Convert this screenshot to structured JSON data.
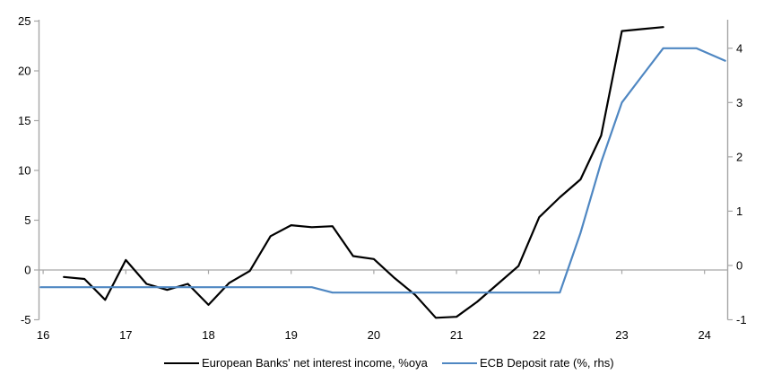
{
  "page": {
    "background": "#ffffff"
  },
  "chart_data": {
    "type": "line",
    "title": "",
    "x_axis": {
      "label": "",
      "ticks": [
        16,
        17,
        18,
        19,
        20,
        21,
        22,
        23,
        24
      ],
      "range": [
        15.95,
        24.28
      ]
    },
    "left_axis": {
      "label": "",
      "ticks": [
        -5,
        0,
        5,
        10,
        15,
        20,
        25
      ],
      "range": [
        -5,
        25
      ]
    },
    "right_axis": {
      "label": "",
      "ticks": [
        -1,
        0,
        1,
        2,
        3,
        4
      ],
      "range": [
        -1,
        4.5
      ]
    },
    "grid": {
      "zero_line": true,
      "full_grid": false
    },
    "legend_position": "bottom",
    "colors": {
      "axis": "#a6a6a6",
      "text": "#000000"
    },
    "series": [
      {
        "name": "European Banks' net interest income, %oya",
        "axis": "left",
        "color": "#000000",
        "points": [
          [
            16.25,
            -0.7
          ],
          [
            16.5,
            -0.9
          ],
          [
            16.75,
            -3.0
          ],
          [
            17.0,
            1.0
          ],
          [
            17.25,
            -1.4
          ],
          [
            17.5,
            -2.0
          ],
          [
            17.75,
            -1.4
          ],
          [
            18.0,
            -3.5
          ],
          [
            18.25,
            -1.3
          ],
          [
            18.5,
            -0.1
          ],
          [
            18.75,
            3.4
          ],
          [
            19.0,
            4.5
          ],
          [
            19.25,
            4.3
          ],
          [
            19.5,
            4.4
          ],
          [
            19.75,
            1.4
          ],
          [
            20.0,
            1.1
          ],
          [
            20.25,
            -0.8
          ],
          [
            20.5,
            -2.5
          ],
          [
            20.75,
            -4.8
          ],
          [
            21.0,
            -4.7
          ],
          [
            21.25,
            -3.2
          ],
          [
            21.5,
            -1.4
          ],
          [
            21.75,
            0.4
          ],
          [
            22.0,
            5.3
          ],
          [
            22.25,
            7.3
          ],
          [
            22.5,
            9.1
          ],
          [
            22.75,
            13.5
          ],
          [
            23.0,
            24.0
          ],
          [
            23.25,
            24.2
          ],
          [
            23.5,
            24.4
          ]
        ]
      },
      {
        "name": "ECB Deposit rate (%, rhs)",
        "axis": "right",
        "color": "#4f87c2",
        "points": [
          [
            15.97,
            -0.4
          ],
          [
            19.25,
            -0.4
          ],
          [
            19.5,
            -0.5
          ],
          [
            22.25,
            -0.5
          ],
          [
            22.5,
            0.6
          ],
          [
            22.75,
            1.9
          ],
          [
            23.0,
            3.0
          ],
          [
            23.25,
            3.5
          ],
          [
            23.5,
            4.0
          ],
          [
            23.9,
            4.0
          ],
          [
            24.25,
            3.77
          ]
        ]
      }
    ]
  }
}
